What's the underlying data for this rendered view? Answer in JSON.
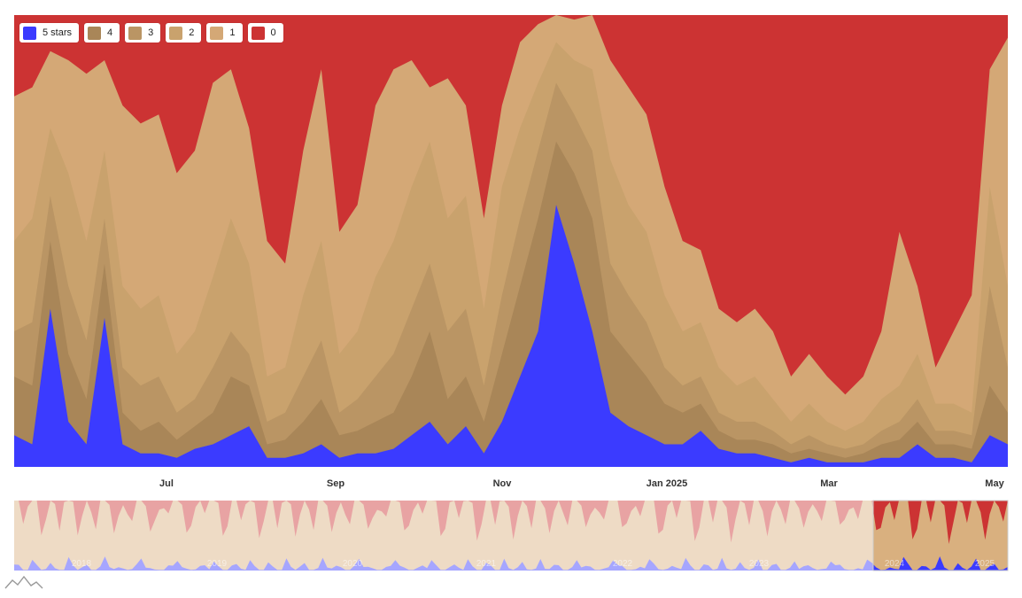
{
  "chart_data": {
    "type": "area",
    "stacked": true,
    "normalized": true,
    "legend_position": "top-left",
    "grid": false,
    "x_axis": {
      "ticks": [
        "Jul",
        "Sep",
        "Nov",
        "Jan 2025",
        "Mar",
        "May"
      ]
    },
    "navigator": {
      "year_labels": [
        "2018",
        "2019",
        "2020",
        "2021",
        "2022",
        "2023",
        "2024",
        "2025"
      ],
      "selected_range": [
        "Apr 2024",
        "May 2025"
      ]
    },
    "series": [
      {
        "name": "5 stars",
        "color": "#3b3bff",
        "values": [
          0.07,
          0.05,
          0.35,
          0.1,
          0.05,
          0.33,
          0.05,
          0.03,
          0.03,
          0.02,
          0.04,
          0.05,
          0.07,
          0.09,
          0.02,
          0.02,
          0.03,
          0.05,
          0.02,
          0.03,
          0.03,
          0.04,
          0.07,
          0.1,
          0.05,
          0.09,
          0.03,
          0.1,
          0.2,
          0.3,
          0.58,
          0.45,
          0.3,
          0.12,
          0.09,
          0.07,
          0.05,
          0.05,
          0.08,
          0.04,
          0.03,
          0.03,
          0.02,
          0.01,
          0.02,
          0.01,
          0.01,
          0.01,
          0.02,
          0.02,
          0.05,
          0.02,
          0.02,
          0.01,
          0.07,
          0.05
        ]
      },
      {
        "name": "4",
        "color": "#a98658",
        "values": [
          0.2,
          0.18,
          0.5,
          0.25,
          0.15,
          0.45,
          0.12,
          0.08,
          0.1,
          0.06,
          0.09,
          0.12,
          0.2,
          0.18,
          0.05,
          0.06,
          0.1,
          0.15,
          0.07,
          0.08,
          0.1,
          0.12,
          0.2,
          0.3,
          0.15,
          0.2,
          0.1,
          0.25,
          0.4,
          0.55,
          0.72,
          0.65,
          0.55,
          0.3,
          0.25,
          0.2,
          0.14,
          0.12,
          0.14,
          0.08,
          0.06,
          0.06,
          0.05,
          0.03,
          0.04,
          0.03,
          0.02,
          0.03,
          0.05,
          0.06,
          0.1,
          0.05,
          0.05,
          0.04,
          0.18,
          0.12
        ]
      },
      {
        "name": "3",
        "color": "#ba9564",
        "values": [
          0.3,
          0.32,
          0.6,
          0.4,
          0.28,
          0.55,
          0.22,
          0.18,
          0.2,
          0.12,
          0.15,
          0.22,
          0.3,
          0.25,
          0.1,
          0.12,
          0.2,
          0.28,
          0.12,
          0.15,
          0.2,
          0.25,
          0.35,
          0.45,
          0.3,
          0.35,
          0.18,
          0.38,
          0.55,
          0.7,
          0.85,
          0.78,
          0.7,
          0.45,
          0.38,
          0.32,
          0.22,
          0.18,
          0.2,
          0.12,
          0.1,
          0.1,
          0.08,
          0.05,
          0.07,
          0.05,
          0.04,
          0.05,
          0.08,
          0.1,
          0.15,
          0.08,
          0.08,
          0.07,
          0.4,
          0.22
        ]
      },
      {
        "name": "2",
        "color": "#c9a26d",
        "values": [
          0.5,
          0.55,
          0.75,
          0.65,
          0.5,
          0.7,
          0.4,
          0.35,
          0.38,
          0.25,
          0.3,
          0.42,
          0.55,
          0.45,
          0.2,
          0.22,
          0.38,
          0.5,
          0.25,
          0.3,
          0.42,
          0.5,
          0.62,
          0.72,
          0.55,
          0.6,
          0.35,
          0.62,
          0.75,
          0.85,
          0.94,
          0.9,
          0.88,
          0.68,
          0.58,
          0.52,
          0.38,
          0.3,
          0.32,
          0.22,
          0.18,
          0.2,
          0.15,
          0.1,
          0.14,
          0.1,
          0.08,
          0.1,
          0.15,
          0.18,
          0.25,
          0.14,
          0.14,
          0.12,
          0.62,
          0.4
        ]
      },
      {
        "name": "1",
        "color": "#d4a876",
        "values": [
          0.82,
          0.84,
          0.92,
          0.9,
          0.87,
          0.9,
          0.8,
          0.76,
          0.78,
          0.65,
          0.7,
          0.85,
          0.88,
          0.75,
          0.5,
          0.45,
          0.7,
          0.88,
          0.52,
          0.58,
          0.8,
          0.88,
          0.9,
          0.84,
          0.86,
          0.8,
          0.55,
          0.8,
          0.94,
          0.98,
          1.0,
          0.99,
          1.0,
          0.9,
          0.84,
          0.78,
          0.62,
          0.5,
          0.48,
          0.35,
          0.32,
          0.35,
          0.3,
          0.2,
          0.25,
          0.2,
          0.16,
          0.2,
          0.3,
          0.52,
          0.4,
          0.22,
          0.3,
          0.38,
          0.88,
          0.95
        ]
      },
      {
        "name": "0",
        "color": "#cc3333",
        "values": [
          0.18,
          0.16,
          0.08,
          0.1,
          0.13,
          0.1,
          0.2,
          0.24,
          0.22,
          0.35,
          0.3,
          0.15,
          0.12,
          0.25,
          0.5,
          0.55,
          0.3,
          0.12,
          0.48,
          0.42,
          0.2,
          0.12,
          0.1,
          0.16,
          0.14,
          0.2,
          0.45,
          0.2,
          0.06,
          0.02,
          0.0,
          0.01,
          0.0,
          0.1,
          0.16,
          0.22,
          0.38,
          0.5,
          0.52,
          0.65,
          0.68,
          0.65,
          0.7,
          0.8,
          0.75,
          0.8,
          0.84,
          0.8,
          0.7,
          0.48,
          0.6,
          0.78,
          0.7,
          0.62,
          0.12,
          0.05
        ]
      }
    ]
  }
}
